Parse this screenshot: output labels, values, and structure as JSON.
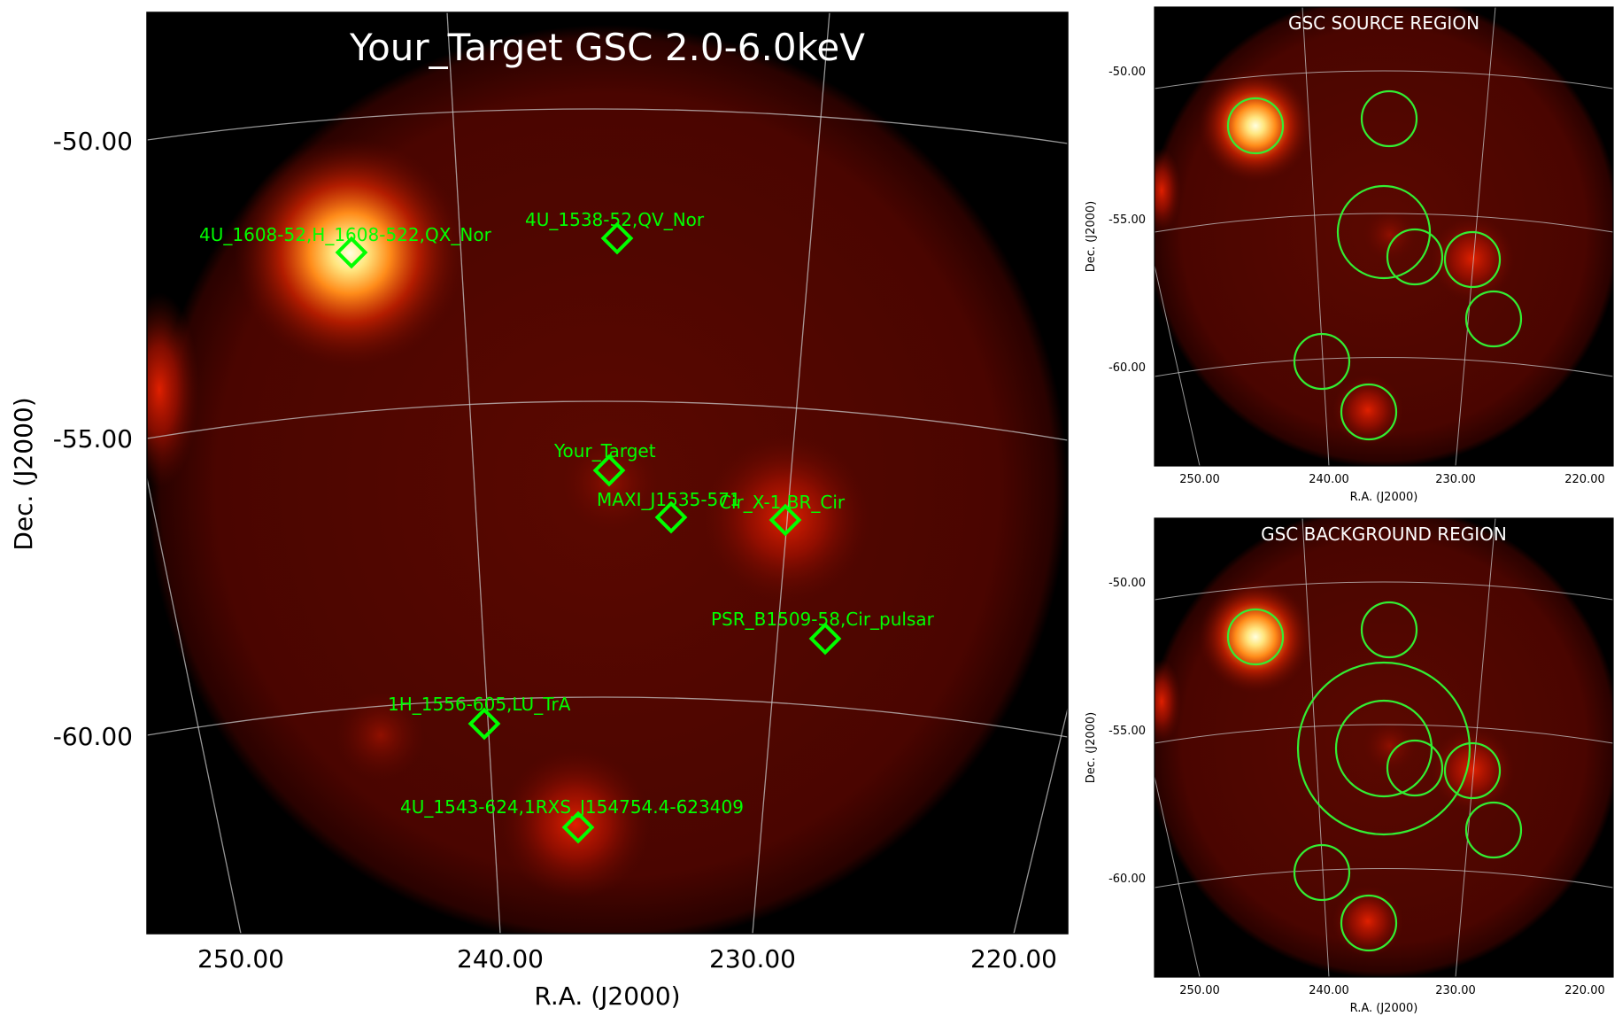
{
  "main": {
    "title": "Your_Target GSC 2.0-6.0keV",
    "xlabel": "R.A. (J2000)",
    "ylabel": "Dec. (J2000)",
    "xticks": [
      "250.00",
      "240.00",
      "230.00",
      "220.00"
    ],
    "yticks": [
      "-50.00",
      "-55.00",
      "-60.00"
    ],
    "sources": [
      {
        "name": "4U_1608-52,H_1608-522,QX_Nor"
      },
      {
        "name": "4U_1538-52,QV_Nor"
      },
      {
        "name": "Your_Target"
      },
      {
        "name": "MAXI_J1535-571"
      },
      {
        "name": "Cir_X-1,BR_Cir"
      },
      {
        "name": "PSR_B1509-58,Cir_pulsar"
      },
      {
        "name": "1H_1556-605,LU_TrA"
      },
      {
        "name": "4U_1543-624,1RXS_J154754.4-623409"
      }
    ]
  },
  "source_panel": {
    "title": "GSC SOURCE REGION",
    "xlabel": "R.A. (J2000)",
    "ylabel": "Dec. (J2000)",
    "xticks": [
      "250.00",
      "240.00",
      "230.00",
      "220.00"
    ],
    "yticks": [
      "-50.00",
      "-55.00",
      "-60.00"
    ]
  },
  "background_panel": {
    "title": "GSC BACKGROUND REGION",
    "xlabel": "R.A. (J2000)",
    "ylabel": "Dec. (J2000)",
    "xticks": [
      "250.00",
      "240.00",
      "230.00",
      "220.00"
    ],
    "yticks": [
      "-50.00",
      "-55.00",
      "-60.00"
    ]
  },
  "colors": {
    "marker": "#00ff00",
    "grid": "#c8c8c8",
    "colormap": "hot"
  }
}
